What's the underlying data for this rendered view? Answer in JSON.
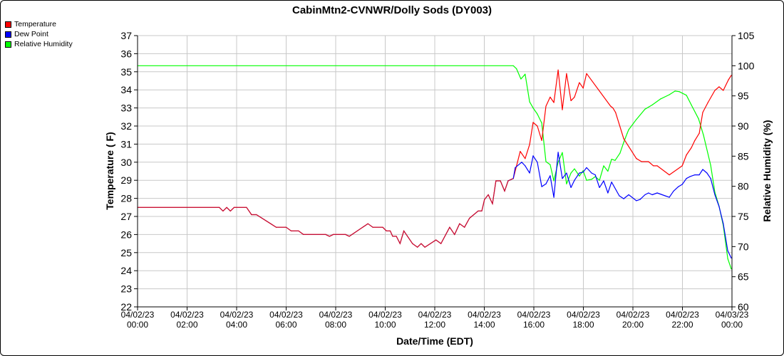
{
  "chart_data": {
    "type": "line",
    "title": "CabinMtn2-CVNWR/Dolly Sods (DY003)",
    "xlabel": "Date/Time (EDT)",
    "ylabel": "Temperature ( F)",
    "y2label": "Relative Humidity (%)",
    "xlim": [
      0,
      24
    ],
    "ylim": [
      22,
      37
    ],
    "y2lim": [
      60,
      105
    ],
    "x_unit": "hours since 04/02/23 00:00",
    "xticks": [
      {
        "x": 0,
        "date": "04/02/23",
        "time": "00:00"
      },
      {
        "x": 2,
        "date": "04/02/23",
        "time": "02:00"
      },
      {
        "x": 4,
        "date": "04/02/23",
        "time": "04:00"
      },
      {
        "x": 6,
        "date": "04/02/23",
        "time": "06:00"
      },
      {
        "x": 8,
        "date": "04/02/23",
        "time": "08:00"
      },
      {
        "x": 10,
        "date": "04/02/23",
        "time": "10:00"
      },
      {
        "x": 12,
        "date": "04/02/23",
        "time": "12:00"
      },
      {
        "x": 14,
        "date": "04/02/23",
        "time": "14:00"
      },
      {
        "x": 16,
        "date": "04/02/23",
        "time": "16:00"
      },
      {
        "x": 18,
        "date": "04/02/23",
        "time": "18:00"
      },
      {
        "x": 20,
        "date": "04/02/23",
        "time": "20:00"
      },
      {
        "x": 22,
        "date": "04/02/23",
        "time": "22:00"
      },
      {
        "x": 24,
        "date": "04/03/23",
        "time": "00:00"
      }
    ],
    "yticks": [
      "22",
      "23",
      "24",
      "25",
      "26",
      "27",
      "28",
      "29",
      "30",
      "31",
      "32",
      "33",
      "34",
      "35",
      "36",
      "37"
    ],
    "y2ticks": [
      "60",
      "65",
      "70",
      "75",
      "80",
      "85",
      "90",
      "95",
      "100",
      "105"
    ],
    "grid": true,
    "legend_position": "top-left outside",
    "series": [
      {
        "name": "Temperature",
        "axis": "left",
        "color": "#ff0000",
        "points": [
          [
            0,
            27.5
          ],
          [
            3.3,
            27.5
          ],
          [
            3.45,
            27.3
          ],
          [
            3.6,
            27.5
          ],
          [
            3.75,
            27.3
          ],
          [
            3.9,
            27.5
          ],
          [
            4.4,
            27.5
          ],
          [
            4.6,
            27.1
          ],
          [
            4.8,
            27.1
          ],
          [
            5.6,
            26.4
          ],
          [
            6.0,
            26.4
          ],
          [
            6.2,
            26.2
          ],
          [
            6.5,
            26.2
          ],
          [
            6.7,
            26.0
          ],
          [
            7.6,
            26.0
          ],
          [
            7.75,
            25.9
          ],
          [
            7.9,
            26.0
          ],
          [
            8.4,
            26.0
          ],
          [
            8.55,
            25.9
          ],
          [
            9.3,
            26.6
          ],
          [
            9.5,
            26.4
          ],
          [
            9.9,
            26.4
          ],
          [
            10.05,
            26.2
          ],
          [
            10.2,
            26.2
          ],
          [
            10.3,
            25.9
          ],
          [
            10.45,
            25.9
          ],
          [
            10.6,
            25.5
          ],
          [
            10.75,
            26.2
          ],
          [
            11.1,
            25.5
          ],
          [
            11.3,
            25.3
          ],
          [
            11.45,
            25.5
          ],
          [
            11.6,
            25.3
          ],
          [
            12.05,
            25.7
          ],
          [
            12.25,
            25.5
          ],
          [
            12.6,
            26.4
          ],
          [
            12.8,
            26.0
          ],
          [
            13.0,
            26.6
          ],
          [
            13.2,
            26.4
          ],
          [
            13.4,
            26.9
          ],
          [
            13.75,
            27.3
          ],
          [
            13.9,
            27.3
          ],
          [
            14.01,
            27.94
          ],
          [
            14.16,
            28.2
          ],
          [
            14.33,
            27.7
          ],
          [
            14.47,
            28.97
          ],
          [
            14.65,
            28.97
          ],
          [
            14.82,
            28.4
          ],
          [
            14.96,
            28.97
          ],
          [
            15.17,
            29.1
          ],
          [
            15.45,
            30.6
          ],
          [
            15.65,
            30.2
          ],
          [
            15.83,
            30.98
          ],
          [
            15.97,
            32.2
          ],
          [
            16.14,
            32.0
          ],
          [
            16.32,
            31.2
          ],
          [
            16.49,
            33.1
          ],
          [
            16.66,
            33.6
          ],
          [
            16.81,
            33.3
          ],
          [
            16.98,
            35.1
          ],
          [
            17.15,
            32.9
          ],
          [
            17.32,
            34.9
          ],
          [
            17.5,
            33.4
          ],
          [
            17.64,
            33.6
          ],
          [
            17.84,
            34.4
          ],
          [
            17.99,
            34.1
          ],
          [
            18.13,
            34.9
          ],
          [
            19.1,
            33.1
          ],
          [
            19.19,
            33.0
          ],
          [
            19.3,
            32.75
          ],
          [
            19.63,
            31.3
          ],
          [
            20.14,
            30.2
          ],
          [
            20.35,
            30.03
          ],
          [
            20.63,
            30.03
          ],
          [
            20.83,
            29.8
          ],
          [
            20.98,
            29.8
          ],
          [
            21.47,
            29.3
          ],
          [
            21.99,
            29.8
          ],
          [
            22.16,
            30.4
          ],
          [
            22.36,
            30.8
          ],
          [
            22.5,
            31.2
          ],
          [
            22.68,
            31.6
          ],
          [
            22.82,
            32.75
          ],
          [
            23.03,
            33.3
          ],
          [
            23.31,
            33.97
          ],
          [
            23.48,
            34.17
          ],
          [
            23.65,
            33.97
          ],
          [
            23.86,
            34.56
          ],
          [
            23.97,
            34.8
          ]
        ]
      },
      {
        "name": "Dew Point",
        "axis": "left",
        "color": "#0000ff",
        "points": [
          [
            14.96,
            28.97
          ],
          [
            15.17,
            29.1
          ],
          [
            15.25,
            29.7
          ],
          [
            15.51,
            30.0
          ],
          [
            15.65,
            29.8
          ],
          [
            15.83,
            29.4
          ],
          [
            15.97,
            30.35
          ],
          [
            16.14,
            30.0
          ],
          [
            16.32,
            28.65
          ],
          [
            16.49,
            28.8
          ],
          [
            16.66,
            29.25
          ],
          [
            16.81,
            28.06
          ],
          [
            16.98,
            30.55
          ],
          [
            17.15,
            29.1
          ],
          [
            17.32,
            29.4
          ],
          [
            17.5,
            28.6
          ],
          [
            17.64,
            29.0
          ],
          [
            17.84,
            29.4
          ],
          [
            17.99,
            29.45
          ],
          [
            18.13,
            29.7
          ],
          [
            18.33,
            29.4
          ],
          [
            18.48,
            29.3
          ],
          [
            18.65,
            28.6
          ],
          [
            18.82,
            28.97
          ],
          [
            18.99,
            28.3
          ],
          [
            19.14,
            28.9
          ],
          [
            19.45,
            28.14
          ],
          [
            19.63,
            27.98
          ],
          [
            19.83,
            28.2
          ],
          [
            20.14,
            27.87
          ],
          [
            20.29,
            27.94
          ],
          [
            20.49,
            28.2
          ],
          [
            20.63,
            28.3
          ],
          [
            20.78,
            28.2
          ],
          [
            20.98,
            28.3
          ],
          [
            21.3,
            28.14
          ],
          [
            21.47,
            28.06
          ],
          [
            21.64,
            28.4
          ],
          [
            21.84,
            28.65
          ],
          [
            21.99,
            28.77
          ],
          [
            22.16,
            29.1
          ],
          [
            22.3,
            29.2
          ],
          [
            22.5,
            29.3
          ],
          [
            22.68,
            29.3
          ],
          [
            22.82,
            29.6
          ],
          [
            22.99,
            29.4
          ],
          [
            23.14,
            29.1
          ],
          [
            23.31,
            28.2
          ],
          [
            23.48,
            27.55
          ],
          [
            23.65,
            26.6
          ],
          [
            23.83,
            25.1
          ],
          [
            23.97,
            24.7
          ]
        ],
        "note_before_15h": "identical to Temperature"
      },
      {
        "name": "Relative Humidity",
        "axis": "right",
        "color": "#00ff00",
        "points": [
          [
            0,
            100
          ],
          [
            15.17,
            100
          ],
          [
            15.3,
            99.5
          ],
          [
            15.48,
            97.8
          ],
          [
            15.65,
            98.6
          ],
          [
            15.83,
            94.0
          ],
          [
            15.97,
            93.0
          ],
          [
            16.14,
            92.0
          ],
          [
            16.32,
            90.5
          ],
          [
            16.49,
            84.1
          ],
          [
            16.66,
            83.6
          ],
          [
            16.81,
            80.9
          ],
          [
            16.98,
            84.0
          ],
          [
            17.15,
            85.6
          ],
          [
            17.32,
            80.4
          ],
          [
            17.5,
            82.2
          ],
          [
            17.64,
            82.9
          ],
          [
            17.84,
            81.7
          ],
          [
            17.99,
            82.6
          ],
          [
            18.13,
            81.0
          ],
          [
            18.33,
            81.15
          ],
          [
            18.48,
            81.6
          ],
          [
            18.65,
            81.0
          ],
          [
            18.82,
            83.4
          ],
          [
            18.99,
            82.5
          ],
          [
            19.14,
            84.5
          ],
          [
            19.28,
            84.3
          ],
          [
            19.48,
            85.5
          ],
          [
            19.63,
            87.3
          ],
          [
            19.77,
            88.8
          ],
          [
            19.83,
            89.4
          ],
          [
            20.14,
            91.1
          ],
          [
            20.49,
            92.8
          ],
          [
            20.78,
            93.5
          ],
          [
            21.12,
            94.5
          ],
          [
            21.47,
            95.2
          ],
          [
            21.7,
            95.8
          ],
          [
            21.87,
            95.7
          ],
          [
            22.16,
            95.1
          ],
          [
            22.36,
            93.5
          ],
          [
            22.65,
            91.2
          ],
          [
            22.85,
            88.5
          ],
          [
            23.14,
            83.5
          ],
          [
            23.31,
            79.0
          ],
          [
            23.48,
            76.7
          ],
          [
            23.65,
            73.5
          ],
          [
            23.83,
            68.0
          ],
          [
            23.97,
            66.3
          ]
        ]
      }
    ]
  }
}
